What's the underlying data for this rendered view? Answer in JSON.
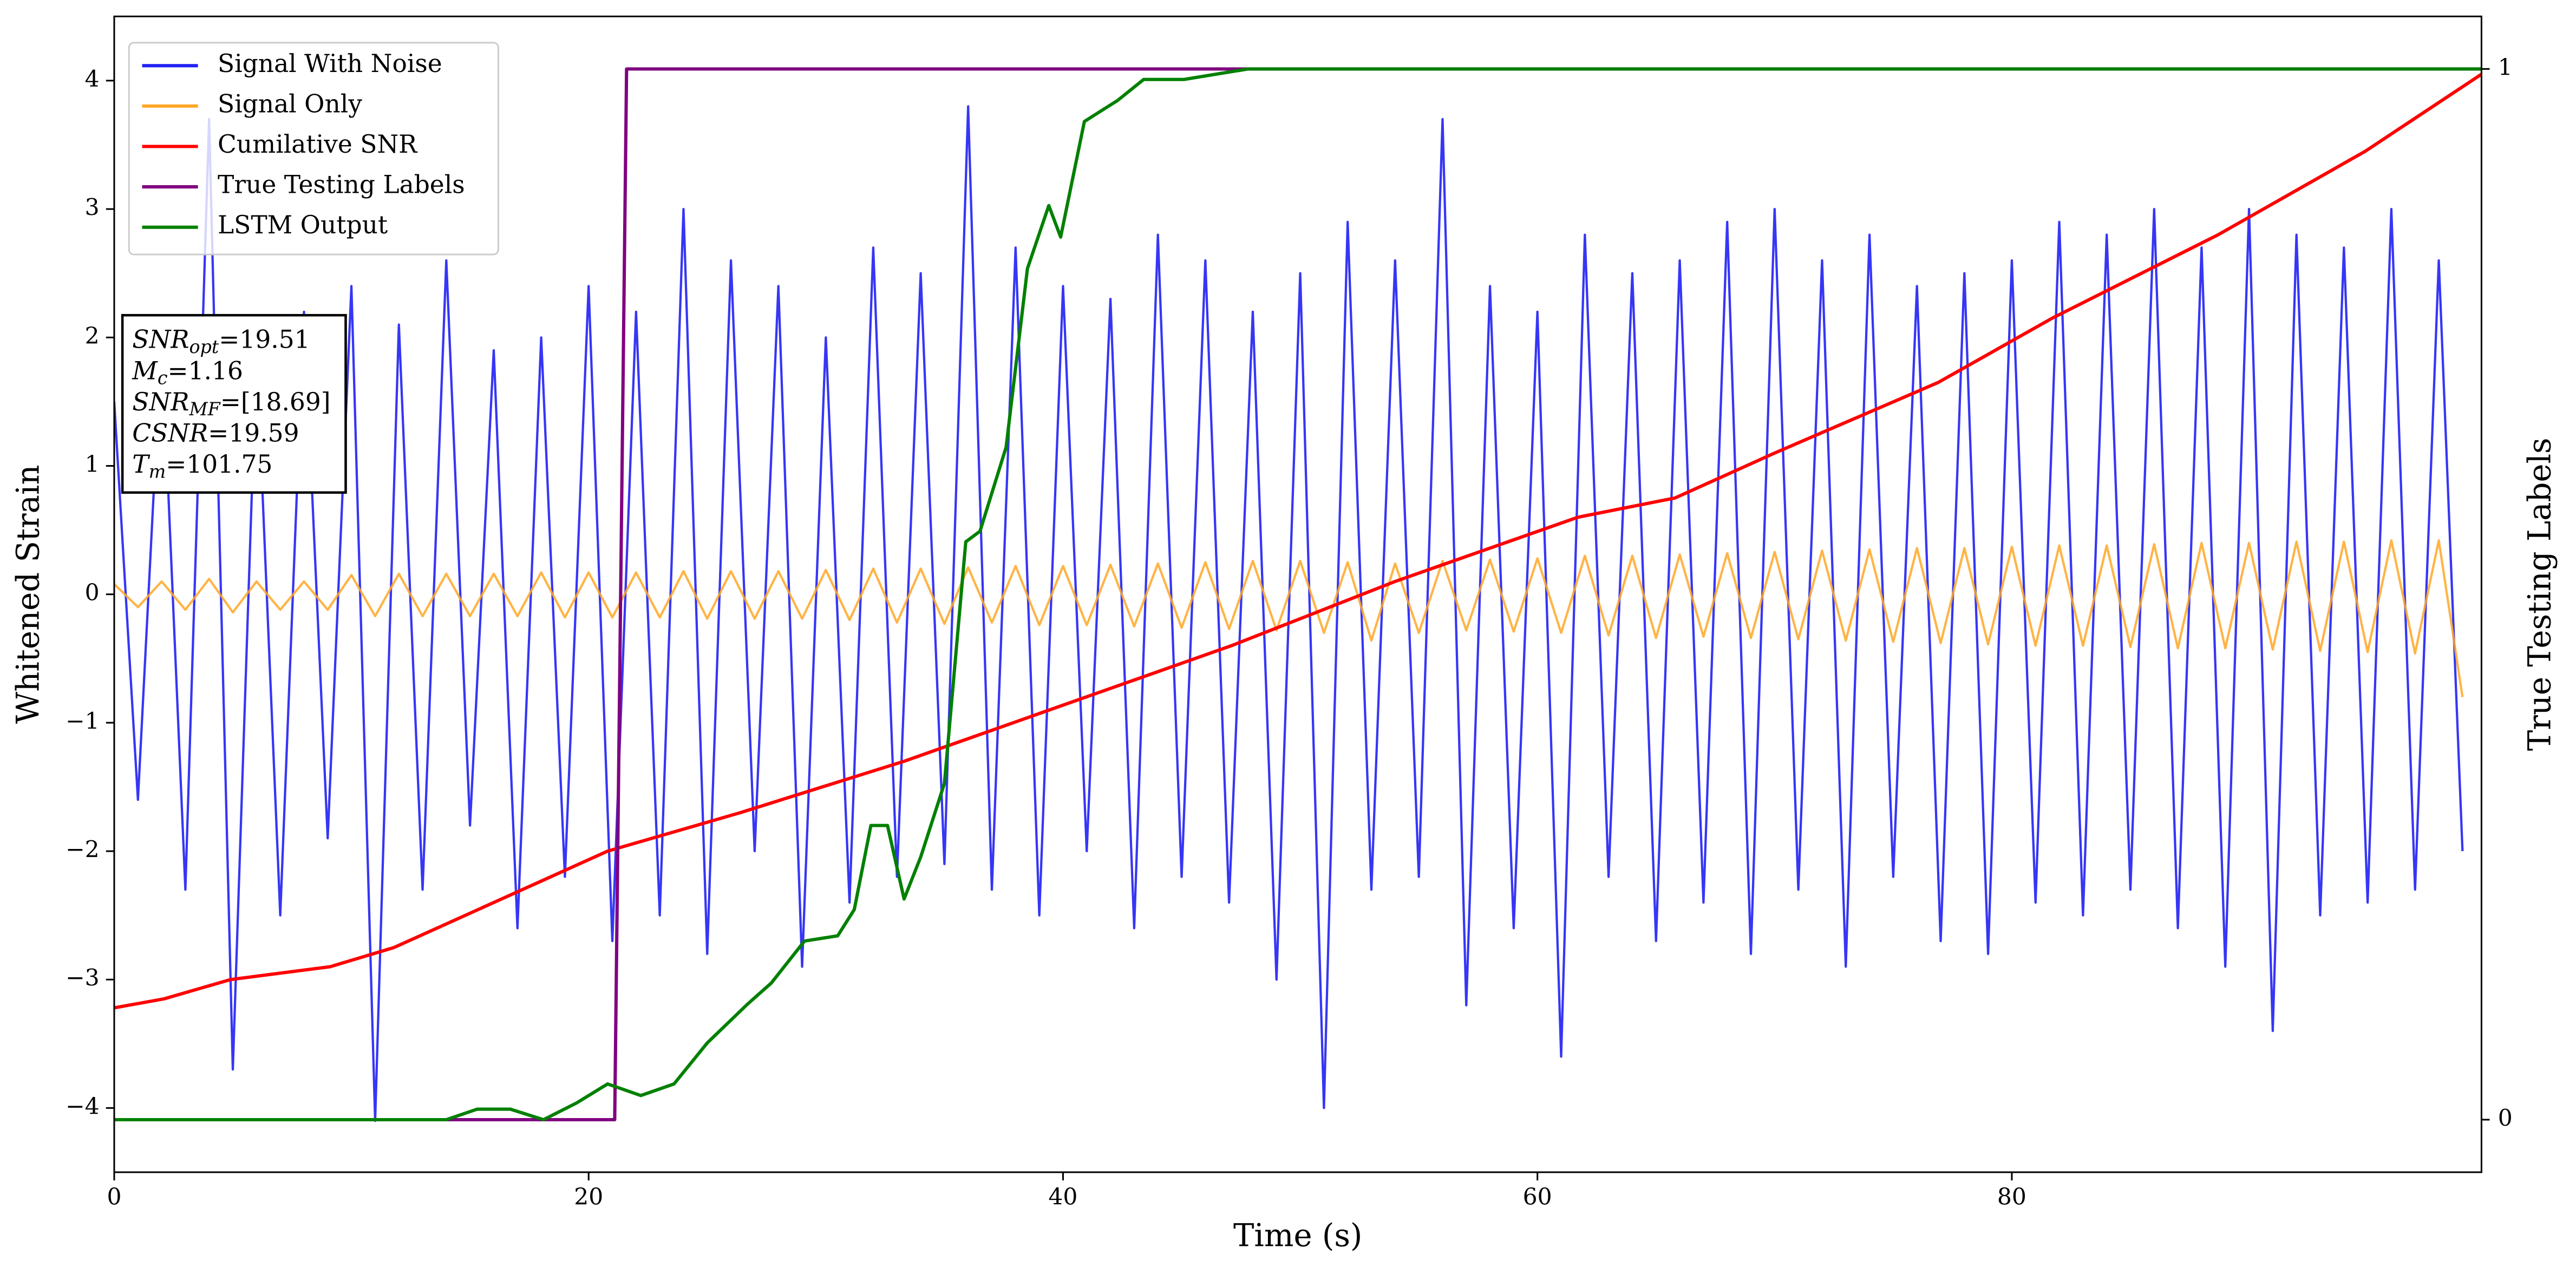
{
  "chart_data": {
    "type": "line",
    "xlabel": "Time (s)",
    "ylabel": "Whitened Strain",
    "y2label": "True Testing Labels",
    "xlim": [
      0,
      99.8
    ],
    "ylim": [
      -4.5,
      4.5
    ],
    "y2lim": [
      -0.05,
      1.05
    ],
    "xticks": [
      0,
      20,
      40,
      60,
      80
    ],
    "yticks": [
      {
        "value": -4,
        "label": "−4"
      },
      {
        "value": -3,
        "label": "−3"
      },
      {
        "value": -2,
        "label": "−2"
      },
      {
        "value": -1,
        "label": "−1"
      },
      0,
      1,
      2,
      3,
      4
    ],
    "y2ticks": [
      0,
      1
    ],
    "legend": "upper left",
    "annotation": [
      {
        "name": "SNR",
        "sub": "opt",
        "text": "=19.51"
      },
      {
        "name": "M",
        "sub": "c",
        "text": "=1.16"
      },
      {
        "name": "SNR",
        "sub": "MF",
        "text": "=[18.69]"
      },
      {
        "name": "CSNR",
        "text": "=19.59"
      },
      {
        "name": "T",
        "sub": "m",
        "text": "=101.75"
      }
    ],
    "series": [
      {
        "name": "Signal With Noise",
        "color": "#2020f5",
        "x": [
          0,
          1,
          2,
          3,
          4,
          5,
          6,
          7,
          8,
          9,
          10,
          11,
          12,
          13,
          14,
          15,
          16,
          17,
          18,
          19,
          20,
          21,
          22,
          23,
          24,
          25,
          26,
          27,
          28,
          29,
          30,
          31,
          32,
          33,
          34,
          35,
          36,
          37,
          38,
          39,
          40,
          41,
          42,
          43,
          44,
          45,
          46,
          47,
          48,
          49,
          50,
          51,
          52,
          53,
          54,
          55,
          56,
          57,
          58,
          59,
          60,
          61,
          62,
          63,
          64,
          65,
          66,
          67,
          68,
          69,
          70,
          71,
          72,
          73,
          74,
          75,
          76,
          77,
          78,
          79,
          80,
          81,
          82,
          83,
          84,
          85,
          86,
          87,
          88,
          89,
          90,
          91,
          92,
          93,
          94,
          95,
          96,
          97,
          98,
          99
        ],
        "values": [
          1.5,
          -1.6,
          2.0,
          -2.3,
          3.7,
          -3.7,
          1.9,
          -2.5,
          2.2,
          -1.9,
          2.4,
          -4.1,
          2.1,
          -2.3,
          2.6,
          -1.8,
          1.9,
          -2.6,
          2.0,
          -2.2,
          2.4,
          -2.7,
          2.2,
          -2.5,
          3.0,
          -2.8,
          2.6,
          -2.0,
          2.4,
          -2.9,
          2.0,
          -2.4,
          2.7,
          -2.2,
          2.5,
          -2.1,
          3.8,
          -2.3,
          2.7,
          -2.5,
          2.4,
          -2.0,
          2.3,
          -2.6,
          2.8,
          -2.2,
          2.6,
          -2.4,
          2.2,
          -3.0,
          2.5,
          -4.0,
          2.9,
          -2.3,
          2.6,
          -2.2,
          3.7,
          -3.2,
          2.4,
          -2.6,
          2.2,
          -3.6,
          2.8,
          -2.2,
          2.5,
          -2.7,
          2.6,
          -2.4,
          2.9,
          -2.8,
          3.0,
          -2.3,
          2.6,
          -2.9,
          2.8,
          -2.2,
          2.4,
          -2.7,
          2.5,
          -2.8,
          2.6,
          -2.4,
          2.9,
          -2.5,
          2.8,
          -2.3,
          3.0,
          -2.6,
          2.7,
          -2.9,
          3.0,
          -3.4,
          2.8,
          -2.5,
          2.7,
          -2.4,
          3.0,
          -2.3,
          2.6,
          -2.0
        ]
      },
      {
        "name": "Signal Only",
        "color": "#ffa726",
        "x": [
          0,
          1,
          2,
          3,
          4,
          5,
          6,
          7,
          8,
          9,
          10,
          11,
          12,
          13,
          14,
          15,
          16,
          17,
          18,
          19,
          20,
          21,
          22,
          23,
          24,
          25,
          26,
          27,
          28,
          29,
          30,
          31,
          32,
          33,
          34,
          35,
          36,
          37,
          38,
          39,
          40,
          41,
          42,
          43,
          44,
          45,
          46,
          47,
          48,
          49,
          50,
          51,
          52,
          53,
          54,
          55,
          56,
          57,
          58,
          59,
          60,
          61,
          62,
          63,
          64,
          65,
          66,
          67,
          68,
          69,
          70,
          71,
          72,
          73,
          74,
          75,
          76,
          77,
          78,
          79,
          80,
          81,
          82,
          83,
          84,
          85,
          86,
          87,
          88,
          89,
          90,
          91,
          92,
          93,
          94,
          95,
          96,
          97,
          98,
          99
        ],
        "values": [
          0.08,
          -0.1,
          0.1,
          -0.12,
          0.12,
          -0.14,
          0.1,
          -0.12,
          0.1,
          -0.12,
          0.15,
          -0.17,
          0.16,
          -0.17,
          0.16,
          -0.17,
          0.16,
          -0.17,
          0.17,
          -0.18,
          0.17,
          -0.18,
          0.17,
          -0.18,
          0.18,
          -0.19,
          0.18,
          -0.19,
          0.18,
          -0.19,
          0.19,
          -0.2,
          0.2,
          -0.22,
          0.2,
          -0.23,
          0.21,
          -0.22,
          0.22,
          -0.24,
          0.22,
          -0.24,
          0.23,
          -0.25,
          0.24,
          -0.26,
          0.25,
          -0.27,
          0.26,
          -0.28,
          0.26,
          -0.3,
          0.25,
          -0.36,
          0.24,
          -0.3,
          0.26,
          -0.28,
          0.27,
          -0.29,
          0.28,
          -0.3,
          0.3,
          -0.32,
          0.3,
          -0.34,
          0.31,
          -0.33,
          0.32,
          -0.34,
          0.33,
          -0.35,
          0.34,
          -0.36,
          0.35,
          -0.37,
          0.36,
          -0.38,
          0.36,
          -0.39,
          0.37,
          -0.4,
          0.38,
          -0.4,
          0.38,
          -0.41,
          0.39,
          -0.42,
          0.4,
          -0.42,
          0.4,
          -0.43,
          0.41,
          -0.44,
          0.41,
          -0.45,
          0.42,
          -0.46,
          0.42,
          -0.8
        ]
      },
      {
        "name": "Cumilative SNR",
        "color": "#ff0000",
        "x": [
          0,
          2.1,
          4.9,
          9.1,
          11.8,
          16,
          20.8,
          26.4,
          33.3,
          40.2,
          47.1,
          54,
          61.7,
          65.8,
          70,
          76.9,
          81.7,
          88.7,
          94.9,
          99.8
        ],
        "values": [
          -3.22,
          -3.15,
          -3.0,
          -2.9,
          -2.75,
          -2.4,
          -2.0,
          -1.7,
          -1.3,
          -0.85,
          -0.4,
          0.1,
          0.6,
          0.75,
          1.1,
          1.65,
          2.15,
          2.8,
          3.45,
          4.05
        ]
      },
      {
        "name": "True Testing Labels",
        "color": "#800080",
        "axis": "y2",
        "x": [
          0,
          21.1,
          21.6,
          99.8
        ],
        "values": [
          0,
          0,
          1,
          1
        ]
      },
      {
        "name": "LSTM Output",
        "color": "#008000",
        "axis": "y2",
        "x": [
          0,
          14,
          15.3,
          16.7,
          18.1,
          19.5,
          20.8,
          22.2,
          23.6,
          25,
          26.7,
          27.7,
          29.1,
          30.5,
          31.2,
          31.9,
          32.6,
          33.3,
          34,
          35,
          35.9,
          36.5,
          37.6,
          38.5,
          39.4,
          39.9,
          40.9,
          42.3,
          43.4,
          45.1,
          47.8,
          52.7,
          59.6,
          99.8
        ],
        "values": [
          0,
          0,
          0.01,
          0.01,
          0,
          0.016,
          0.034,
          0.023,
          0.034,
          0.073,
          0.11,
          0.13,
          0.17,
          0.175,
          0.2,
          0.28,
          0.28,
          0.21,
          0.25,
          0.32,
          0.55,
          0.56,
          0.64,
          0.81,
          0.87,
          0.84,
          0.95,
          0.97,
          0.99,
          0.99,
          1.0,
          1.0,
          1.0,
          1.0
        ]
      }
    ]
  }
}
